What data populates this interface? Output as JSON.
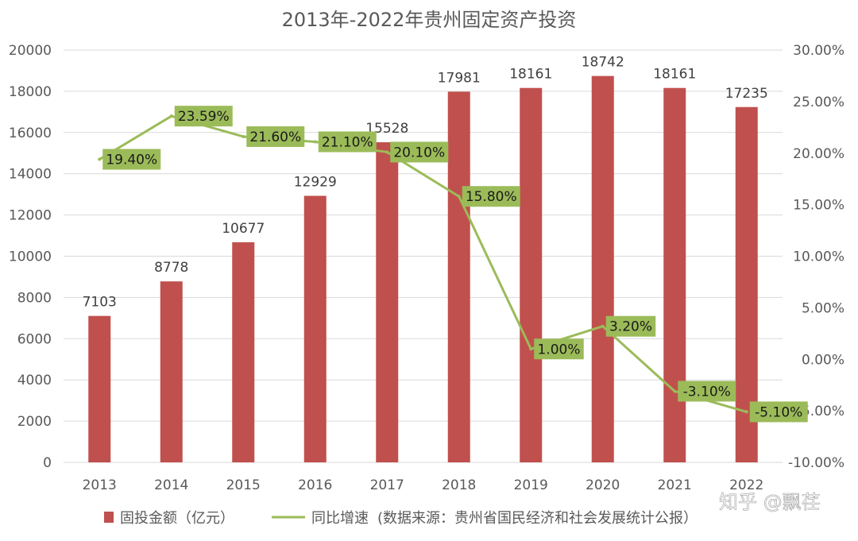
{
  "chart_data": {
    "type": "bar",
    "title": "2013年-2022年贵州固定资产投资",
    "categories": [
      "2013",
      "2014",
      "2015",
      "2016",
      "2017",
      "2018",
      "2019",
      "2020",
      "2021",
      "2022"
    ],
    "series": [
      {
        "name": "固投金额（亿元）",
        "type": "bar",
        "axis": "left",
        "color": "#c0504d",
        "values": [
          7103,
          8778,
          10677,
          12929,
          15528,
          17981,
          18161,
          18742,
          18161,
          17235
        ],
        "labels": [
          "7103",
          "8778",
          "10677",
          "12929",
          "15528",
          "17981",
          "18161",
          "18742",
          "18161",
          "17235"
        ]
      },
      {
        "name": "同比增速",
        "type": "line",
        "axis": "right",
        "color": "#9bbb59",
        "values": [
          19.4,
          23.59,
          21.6,
          21.1,
          20.1,
          15.8,
          1.0,
          3.2,
          -3.1,
          -5.1
        ],
        "labels": [
          "19.40%",
          "23.59%",
          "21.60%",
          "21.10%",
          "20.10%",
          "15.80%",
          "1.00%",
          "3.20%",
          "-3.10%",
          "-5.10%"
        ]
      }
    ],
    "y_left": {
      "ylim": [
        0,
        20000
      ],
      "ticks": [
        "0",
        "2000",
        "4000",
        "6000",
        "8000",
        "10000",
        "12000",
        "14000",
        "16000",
        "18000",
        "20000"
      ]
    },
    "y_right": {
      "ylim": [
        -10,
        30
      ],
      "ticks": [
        "-10.00%",
        "-5.00%",
        "0.00%",
        "5.00%",
        "10.00%",
        "15.00%",
        "20.00%",
        "25.00%",
        "30.00%"
      ]
    },
    "grid": true,
    "legend": {
      "position": "bottom",
      "source_note": "(数据来源：贵州省国民经济和社会发展统计公报）"
    },
    "watermark": "知乎 @飘荏"
  }
}
